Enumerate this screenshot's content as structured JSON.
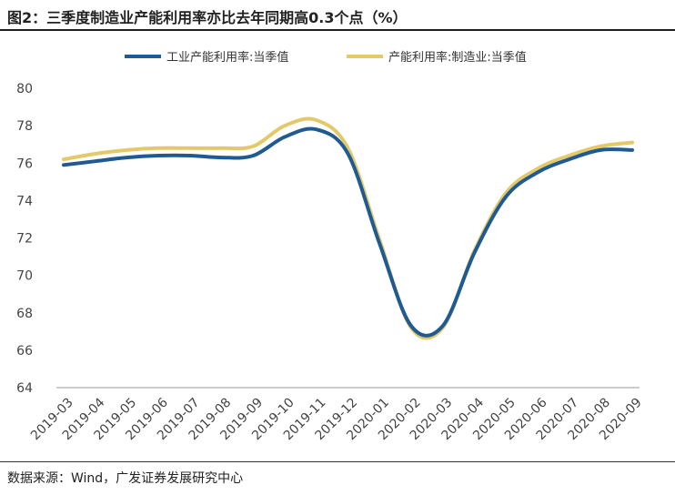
{
  "header": {
    "title": "图2：三季度制造业产能利用率亦比去年同期高0.3个点（%）"
  },
  "footer": {
    "source": "数据来源：Wind，广发证券发展研究中心"
  },
  "chart_data": {
    "type": "line",
    "title": "图2：三季度制造业产能利用率亦比去年同期高0.3个点（%）",
    "xlabel": "",
    "ylabel": "",
    "ylim": [
      64,
      80
    ],
    "yticks": [
      64,
      66,
      68,
      70,
      72,
      74,
      76,
      78,
      80
    ],
    "grid": false,
    "legend_position": "top-center",
    "categories": [
      "2019-03",
      "2019-04",
      "2019-05",
      "2019-06",
      "2019-07",
      "2019-08",
      "2019-09",
      "2019-10",
      "2019-11",
      "2019-12",
      "2020-01",
      "2020-02",
      "2020-03",
      "2020-04",
      "2020-05",
      "2020-06",
      "2020-07",
      "2020-08",
      "2020-09"
    ],
    "series": [
      {
        "name": "工业产能利用率:当季值",
        "color": "#1f5a92",
        "values": [
          75.9,
          76.1,
          76.3,
          76.4,
          76.4,
          76.3,
          76.4,
          77.4,
          77.8,
          76.5,
          71.7,
          67.3,
          67.3,
          71.2,
          74.2,
          75.5,
          76.2,
          76.7,
          76.7
        ]
      },
      {
        "name": "产能利用率:制造业:当季值",
        "color": "#e3c96a",
        "values": [
          76.2,
          76.5,
          76.7,
          76.8,
          76.8,
          76.8,
          76.9,
          78.0,
          78.3,
          76.8,
          71.9,
          67.2,
          67.2,
          71.3,
          74.4,
          75.7,
          76.4,
          76.9,
          77.1
        ]
      }
    ]
  }
}
